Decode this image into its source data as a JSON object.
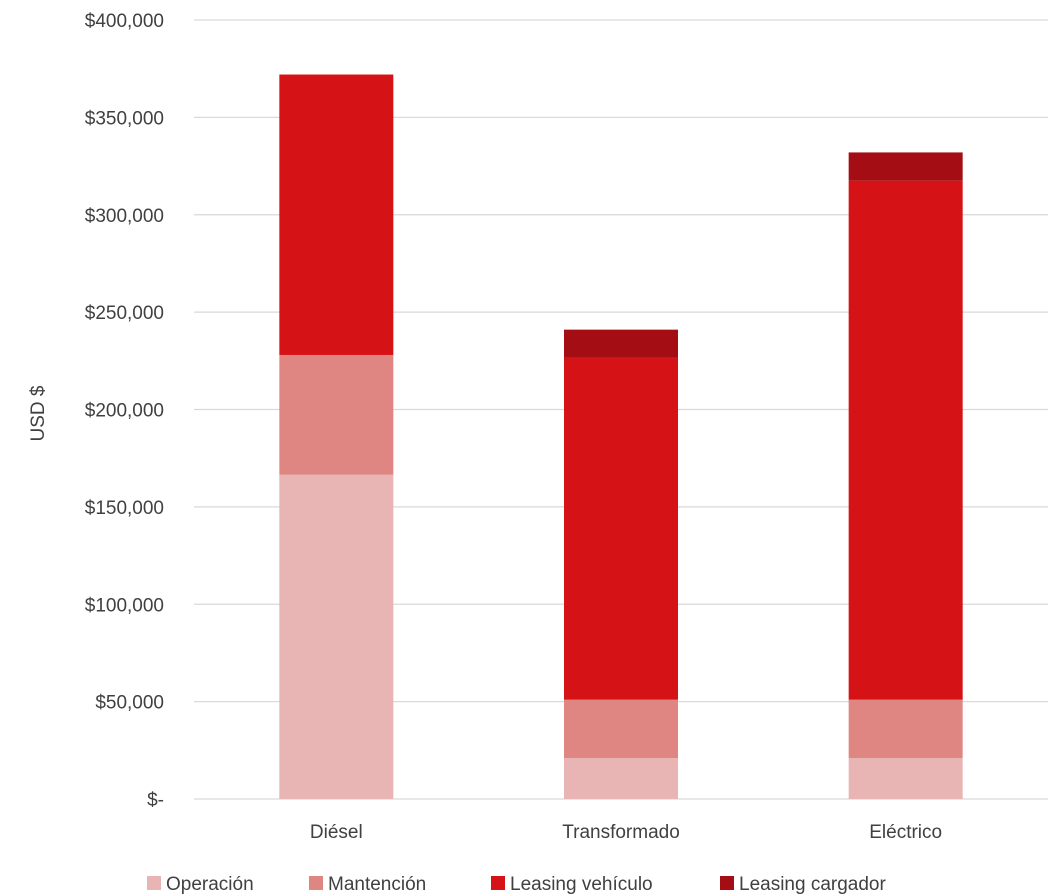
{
  "chart_data": {
    "type": "bar",
    "stacked": true,
    "title": "",
    "xlabel": "",
    "ylabel": "USD $",
    "ylim": [
      0,
      400000
    ],
    "y_ticks": [
      {
        "value": 0,
        "label": "$-"
      },
      {
        "value": 50000,
        "label": "$50,000"
      },
      {
        "value": 100000,
        "label": "$100,000"
      },
      {
        "value": 150000,
        "label": "$150,000"
      },
      {
        "value": 200000,
        "label": "$200,000"
      },
      {
        "value": 250000,
        "label": "$250,000"
      },
      {
        "value": 300000,
        "label": "$300,000"
      },
      {
        "value": 350000,
        "label": "$350,000"
      },
      {
        "value": 400000,
        "label": "$400,000"
      }
    ],
    "grid": true,
    "legend_position": "bottom",
    "categories": [
      "Diésel",
      "Transformado",
      "Eléctrico"
    ],
    "series": [
      {
        "name": "Operación",
        "color": "#e8b4b4",
        "values": [
          166500,
          21000,
          21000
        ]
      },
      {
        "name": "Mantención",
        "color": "#df8582",
        "values": [
          61500,
          30000,
          30000
        ]
      },
      {
        "name": "Leasing vehículo",
        "color": "#d51216",
        "values": [
          144000,
          175500,
          266500
        ]
      },
      {
        "name": "Leasing cargador",
        "color": "#a40d13",
        "values": [
          0,
          14500,
          14500
        ]
      }
    ]
  }
}
